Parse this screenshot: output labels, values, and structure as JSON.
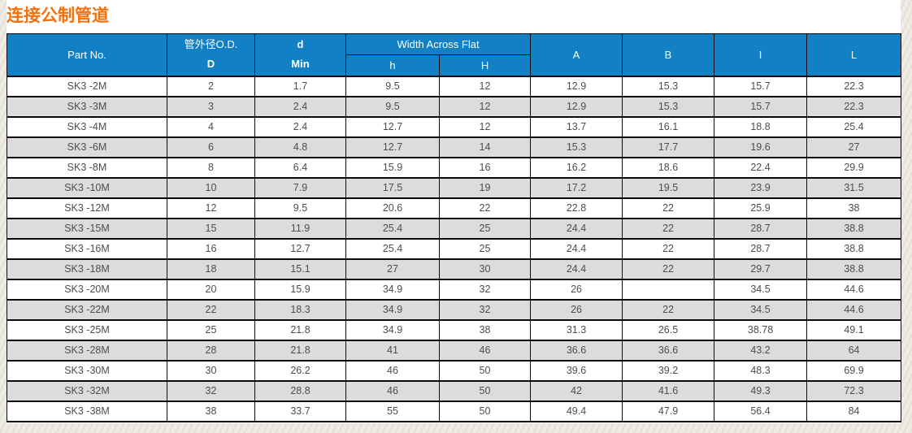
{
  "page": {
    "title": "连接公制管道"
  },
  "colors": {
    "header_bg": "#1180C4",
    "title": "#F2700D",
    "alt_row": "#DCDCDC",
    "border": "#0A0A0A",
    "cell_text": "#4D4D4D"
  },
  "table": {
    "header": {
      "part_no": "Part No.",
      "od_line1": "管外径O.D.",
      "od_line2": "D",
      "d_line1": "d",
      "d_line2": "Min",
      "width_across_flat": "Width Across Flat",
      "waf_h_lower": "h",
      "waf_h_upper": "H",
      "a": "A",
      "b": "B",
      "i": "I",
      "l": "L"
    },
    "rows": [
      [
        "SK3 -2M",
        "2",
        "1.7",
        "9.5",
        "12",
        "12.9",
        "15.3",
        "15.7",
        "22.3"
      ],
      [
        "SK3 -3M",
        "3",
        "2.4",
        "9.5",
        "12",
        "12.9",
        "15.3",
        "15.7",
        "22.3"
      ],
      [
        "SK3 -4M",
        "4",
        "2.4",
        "12.7",
        "12",
        "13.7",
        "16.1",
        "18.8",
        "25.4"
      ],
      [
        "SK3 -6M",
        "6",
        "4.8",
        "12.7",
        "14",
        "15.3",
        "17.7",
        "19.6",
        "27"
      ],
      [
        "SK3 -8M",
        "8",
        "6.4",
        "15.9",
        "16",
        "16.2",
        "18.6",
        "22.4",
        "29.9"
      ],
      [
        "SK3 -10M",
        "10",
        "7.9",
        "17.5",
        "19",
        "17.2",
        "19.5",
        "23.9",
        "31.5"
      ],
      [
        "SK3 -12M",
        "12",
        "9.5",
        "20.6",
        "22",
        "22.8",
        "22",
        "25.9",
        "38"
      ],
      [
        "SK3 -15M",
        "15",
        "11.9",
        "25.4",
        "25",
        "24.4",
        "22",
        "28.7",
        "38.8"
      ],
      [
        "SK3 -16M",
        "16",
        "12.7",
        "25.4",
        "25",
        "24.4",
        "22",
        "28.7",
        "38.8"
      ],
      [
        "SK3 -18M",
        "18",
        "15.1",
        "27",
        "30",
        "24.4",
        "22",
        "29.7",
        "38.8"
      ],
      [
        "SK3 -20M",
        "20",
        "15.9",
        "34.9",
        "32",
        "26",
        "",
        "34.5",
        "44.6"
      ],
      [
        "SK3 -22M",
        "22",
        "18.3",
        "34.9",
        "32",
        "26",
        "22",
        "34.5",
        "44.6"
      ],
      [
        "SK3 -25M",
        "25",
        "21.8",
        "34.9",
        "38",
        "31.3",
        "26.5",
        "38.78",
        "49.1"
      ],
      [
        "SK3 -28M",
        "28",
        "21.8",
        "41",
        "46",
        "36.6",
        "36.6",
        "43.2",
        "64"
      ],
      [
        "SK3 -30M",
        "30",
        "26.2",
        "46",
        "50",
        "39.6",
        "39.2",
        "48.3",
        "69.9"
      ],
      [
        "SK3 -32M",
        "32",
        "28.8",
        "46",
        "50",
        "42",
        "41.6",
        "49.3",
        "72.3"
      ],
      [
        "SK3 -38M",
        "38",
        "33.7",
        "55",
        "50",
        "49.4",
        "47.9",
        "56.4",
        "84"
      ]
    ]
  }
}
